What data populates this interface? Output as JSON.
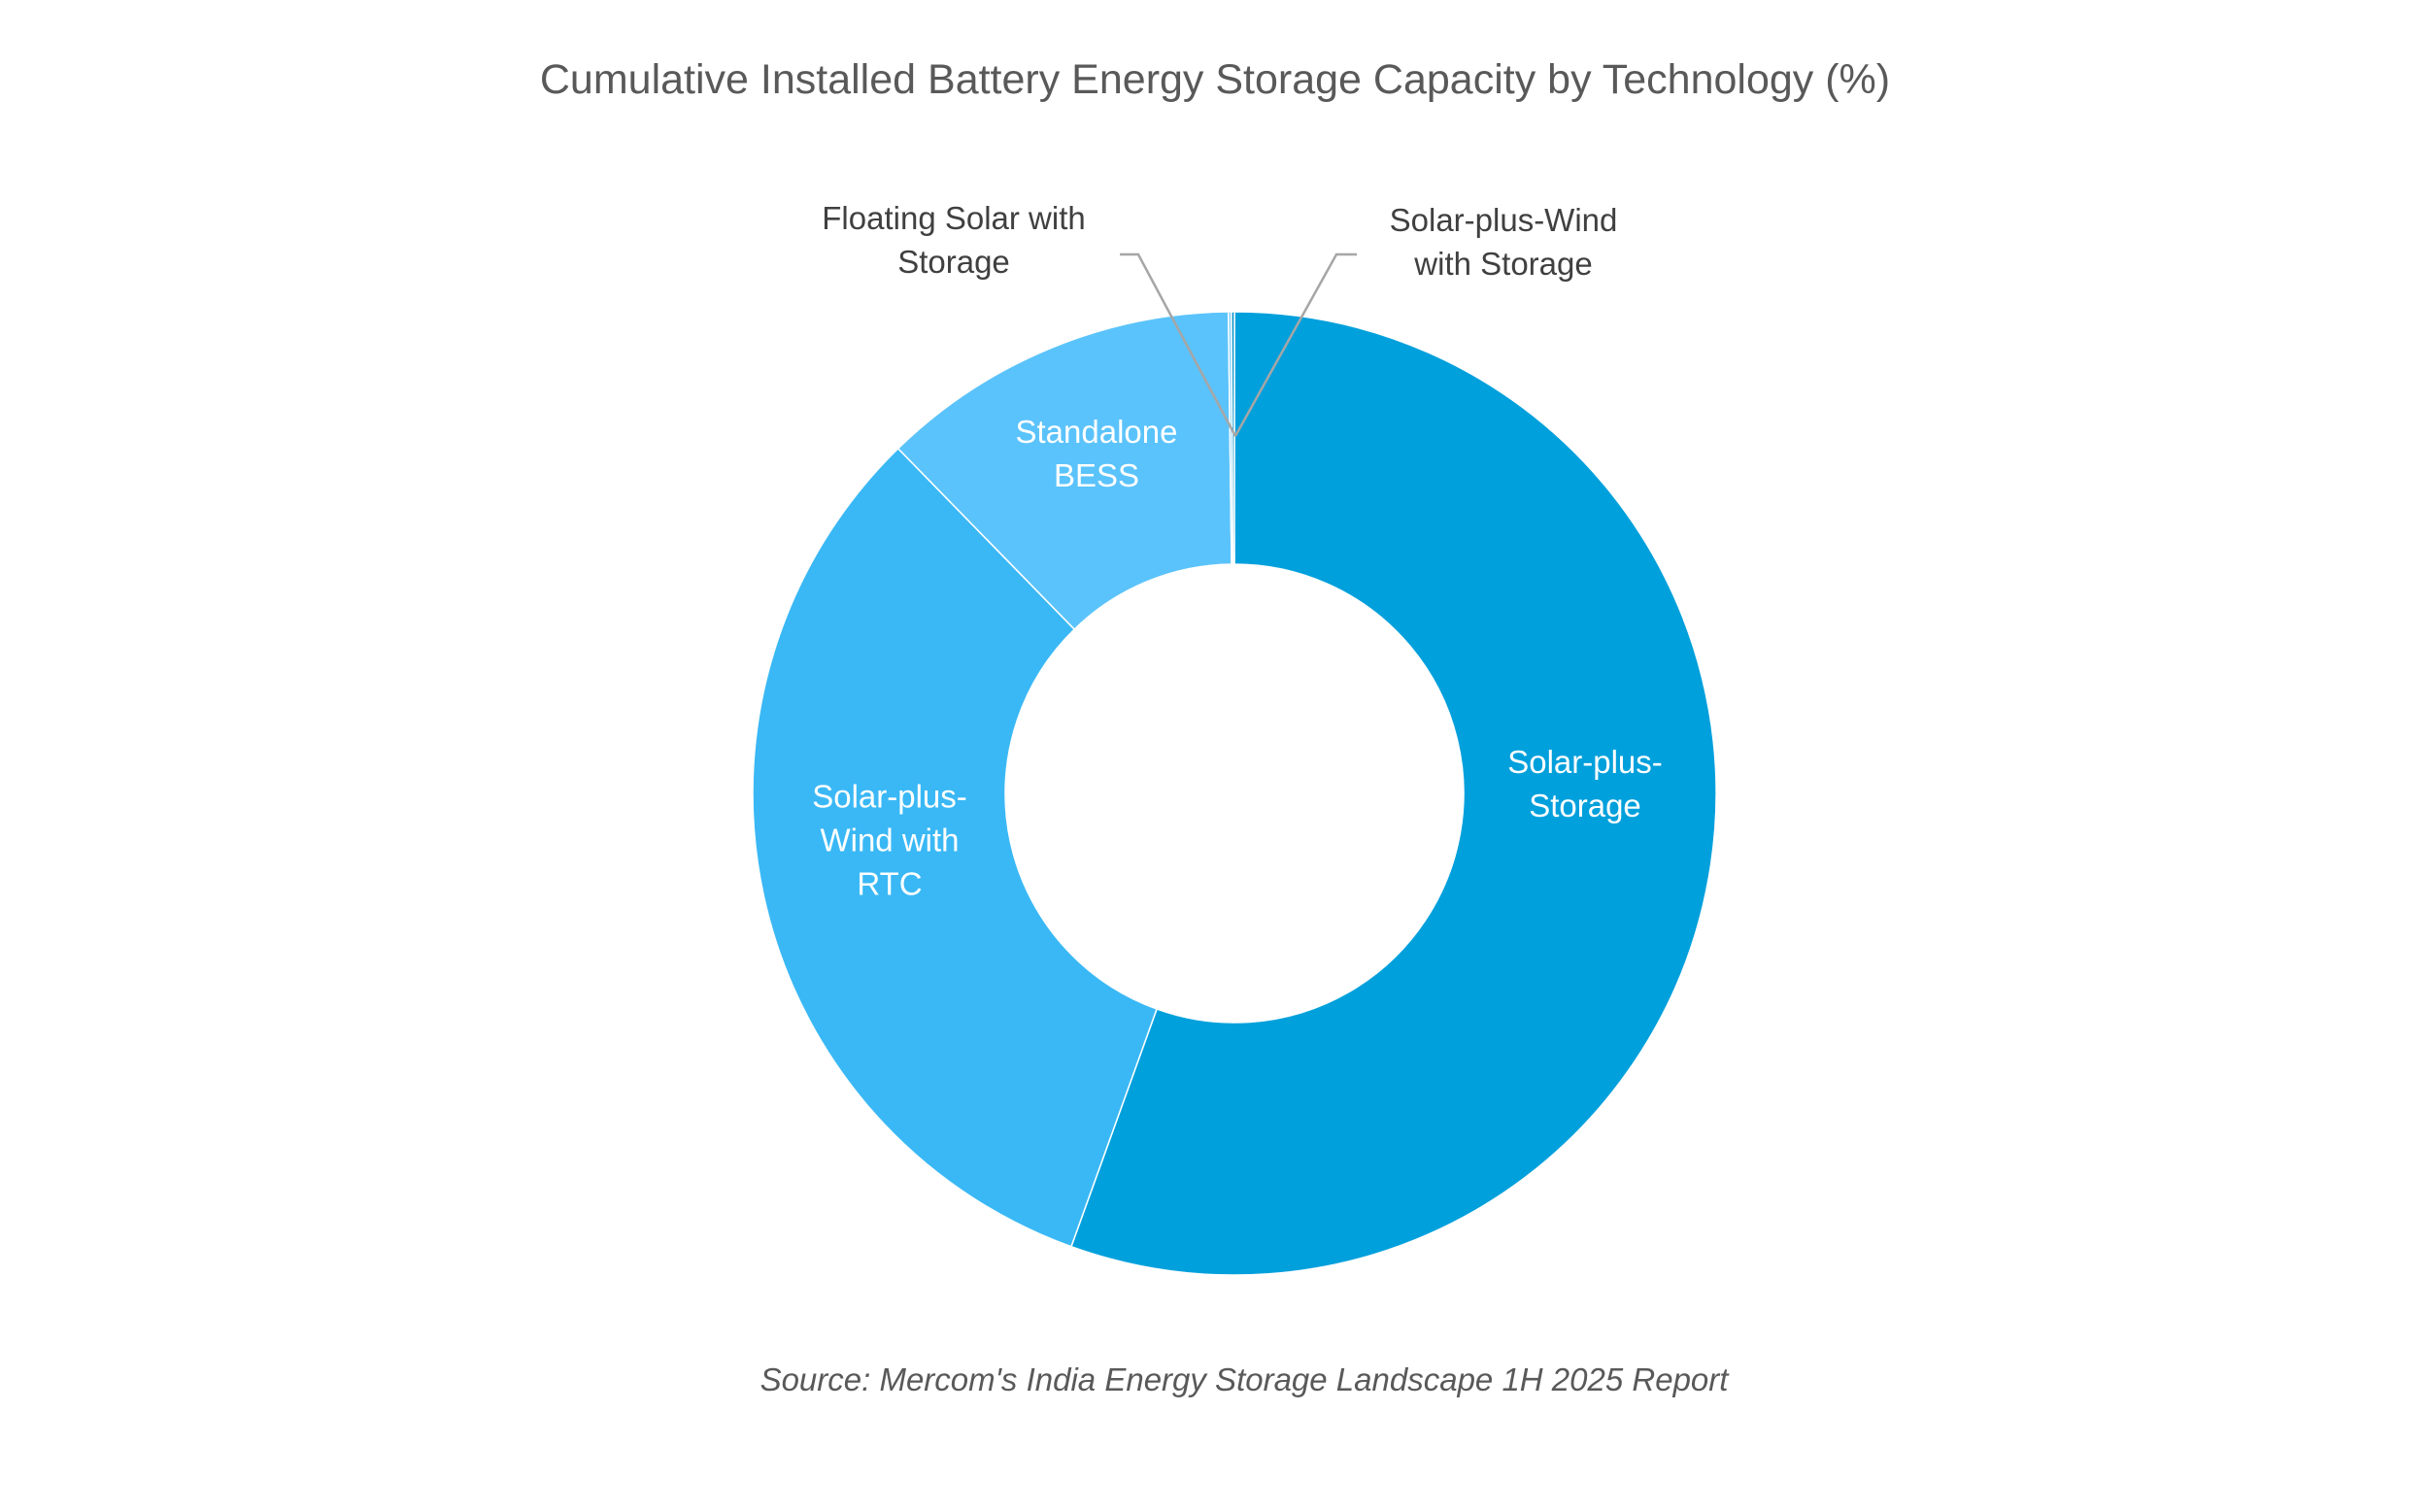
{
  "chart_data": {
    "type": "pie",
    "donut": true,
    "title": "Cumulative Installed Battery Energy Storage Capacity by Technology (%)",
    "source": "Source: Mercom's India Energy Storage Landscape 1H 2025 Report",
    "series": [
      {
        "lines": [
          "Solar-plus-",
          "Storage"
        ],
        "value": 55.5,
        "color": "#00A0DC",
        "label_inside": true
      },
      {
        "lines": [
          "Solar-plus-",
          "Wind with",
          "RTC"
        ],
        "value": 32.2,
        "color": "#3AB8F5",
        "label_inside": true
      },
      {
        "lines": [
          "Standalone",
          "BESS"
        ],
        "value": 12.1,
        "color": "#5BC3FB",
        "label_inside": true
      },
      {
        "lines": [
          "Floating Solar with",
          "Storage"
        ],
        "value": 0.1,
        "color": "#7FD0FC",
        "label_inside": false
      },
      {
        "lines": [
          "Solar-plus-Wind",
          "with Storage"
        ],
        "value": 0.1,
        "color": "#0090C8",
        "label_inside": false
      }
    ],
    "start_angle_deg": 0,
    "direction": "clockwise"
  }
}
